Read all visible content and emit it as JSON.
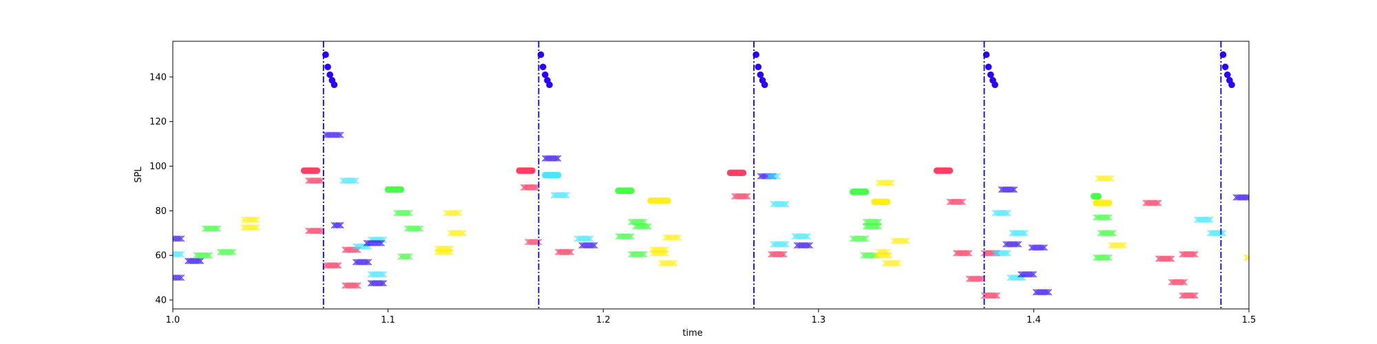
{
  "chart_data": {
    "type": "scatter",
    "title": "",
    "xlabel": "time",
    "ylabel": "SPL",
    "xlim": [
      1.0,
      1.5
    ],
    "ylim": [
      36,
      156
    ],
    "xticks": [
      1.0,
      1.1,
      1.2,
      1.3,
      1.4,
      1.5
    ],
    "xtick_labels": [
      "1.0",
      "1.1",
      "1.2",
      "1.3",
      "1.4",
      "1.5"
    ],
    "yticks": [
      40,
      60,
      80,
      100,
      120,
      140
    ],
    "ytick_labels": [
      "40",
      "60",
      "80",
      "100",
      "120",
      "140"
    ],
    "grid": false,
    "legend": "none",
    "colors": {
      "blue": "#2a00ff",
      "cyan": "#33e6ff",
      "green": "#33ff33",
      "yellow": "#ffee00",
      "red": "#ff2a55",
      "vline": "#0000ff"
    },
    "vlines": {
      "color": "blue",
      "style": "dash-dot",
      "x": [
        1.07,
        1.17,
        1.27,
        1.377,
        1.487
      ]
    },
    "circle_markers": {
      "color": "blue",
      "groups": [
        {
          "x": [
            1.071,
            1.072,
            1.073,
            1.074,
            1.075
          ],
          "y": [
            150,
            144.5,
            141,
            138.5,
            136.5
          ]
        },
        {
          "x": [
            1.171,
            1.172,
            1.173,
            1.174,
            1.175
          ],
          "y": [
            150,
            144.5,
            141,
            138.5,
            136.5
          ]
        },
        {
          "x": [
            1.271,
            1.272,
            1.273,
            1.274,
            1.275
          ],
          "y": [
            150,
            144.5,
            141,
            138.5,
            136.5
          ]
        },
        {
          "x": [
            1.378,
            1.379,
            1.38,
            1.381,
            1.382
          ],
          "y": [
            150,
            144.5,
            141,
            138.5,
            136.5
          ]
        },
        {
          "x": [
            1.488,
            1.489,
            1.49,
            1.491,
            1.492
          ],
          "y": [
            150,
            144.5,
            141,
            138.5,
            136.5
          ]
        }
      ]
    },
    "series": [
      {
        "c": "blue",
        "m": "x",
        "x0": 1.0,
        "x1": 1.004,
        "y": 67.5
      },
      {
        "c": "cyan",
        "m": "x",
        "x0": 1.0,
        "x1": 1.004,
        "y": 60.5
      },
      {
        "c": "blue",
        "m": "x",
        "x0": 1.0,
        "x1": 1.004,
        "y": 50
      },
      {
        "c": "blue",
        "m": "x",
        "x0": 1.007,
        "x1": 1.013,
        "y": 57.5
      },
      {
        "c": "green",
        "m": "x",
        "x0": 1.011,
        "x1": 1.017,
        "y": 60
      },
      {
        "c": "green",
        "m": "x",
        "x0": 1.015,
        "x1": 1.021,
        "y": 72
      },
      {
        "c": "green",
        "m": "x",
        "x0": 1.022,
        "x1": 1.028,
        "y": 61.5
      },
      {
        "c": "yellow",
        "m": "x",
        "x0": 1.033,
        "x1": 1.039,
        "y": 76
      },
      {
        "c": "yellow",
        "m": "x",
        "x0": 1.033,
        "x1": 1.039,
        "y": 72.5
      },
      {
        "c": "red",
        "m": "o",
        "x0": 1.061,
        "x1": 1.067,
        "y": 98
      },
      {
        "c": "red",
        "m": "x",
        "x0": 1.063,
        "x1": 1.069,
        "y": 93.5
      },
      {
        "c": "red",
        "m": "x",
        "x0": 1.063,
        "x1": 1.069,
        "y": 71
      },
      {
        "c": "blue",
        "m": "x",
        "x0": 1.071,
        "x1": 1.078,
        "y": 114
      },
      {
        "c": "blue",
        "m": "x",
        "x0": 1.075,
        "x1": 1.078,
        "y": 73.5
      },
      {
        "c": "red",
        "m": "x",
        "x0": 1.071,
        "x1": 1.077,
        "y": 55.5
      },
      {
        "c": "cyan",
        "m": "x",
        "x0": 1.079,
        "x1": 1.085,
        "y": 93.5
      },
      {
        "c": "red",
        "m": "x",
        "x0": 1.08,
        "x1": 1.086,
        "y": 62.5
      },
      {
        "c": "red",
        "m": "x",
        "x0": 1.08,
        "x1": 1.086,
        "y": 46.5
      },
      {
        "c": "cyan",
        "m": "x",
        "x0": 1.085,
        "x1": 1.091,
        "y": 64
      },
      {
        "c": "blue",
        "m": "x",
        "x0": 1.085,
        "x1": 1.091,
        "y": 57
      },
      {
        "c": "cyan",
        "m": "x",
        "x0": 1.092,
        "x1": 1.098,
        "y": 67
      },
      {
        "c": "blue",
        "m": "x",
        "x0": 1.09,
        "x1": 1.097,
        "y": 65.5
      },
      {
        "c": "cyan",
        "m": "x",
        "x0": 1.092,
        "x1": 1.098,
        "y": 51.5
      },
      {
        "c": "blue",
        "m": "x",
        "x0": 1.092,
        "x1": 1.098,
        "y": 47.5
      },
      {
        "c": "green",
        "m": "o",
        "x0": 1.1,
        "x1": 1.106,
        "y": 89.5
      },
      {
        "c": "green",
        "m": "x",
        "x0": 1.104,
        "x1": 1.11,
        "y": 79
      },
      {
        "c": "green",
        "m": "x",
        "x0": 1.106,
        "x1": 1.11,
        "y": 59.5
      },
      {
        "c": "green",
        "m": "x",
        "x0": 1.109,
        "x1": 1.115,
        "y": 72
      },
      {
        "c": "yellow",
        "m": "x",
        "x0": 1.123,
        "x1": 1.129,
        "y": 63
      },
      {
        "c": "yellow",
        "m": "x",
        "x0": 1.123,
        "x1": 1.129,
        "y": 61.5
      },
      {
        "c": "yellow",
        "m": "x",
        "x0": 1.127,
        "x1": 1.133,
        "y": 79
      },
      {
        "c": "yellow",
        "m": "x",
        "x0": 1.129,
        "x1": 1.135,
        "y": 70
      },
      {
        "c": "red",
        "m": "o",
        "x0": 1.161,
        "x1": 1.167,
        "y": 98
      },
      {
        "c": "red",
        "m": "x",
        "x0": 1.163,
        "x1": 1.169,
        "y": 90.5
      },
      {
        "c": "red",
        "m": "x",
        "x0": 1.165,
        "x1": 1.17,
        "y": 66
      },
      {
        "c": "blue",
        "m": "x",
        "x0": 1.173,
        "x1": 1.179,
        "y": 103.5
      },
      {
        "c": "cyan",
        "m": "o",
        "x0": 1.173,
        "x1": 1.179,
        "y": 96
      },
      {
        "c": "cyan",
        "m": "x",
        "x0": 1.177,
        "x1": 1.183,
        "y": 87
      },
      {
        "c": "red",
        "m": "x",
        "x0": 1.179,
        "x1": 1.185,
        "y": 61.5
      },
      {
        "c": "cyan",
        "m": "x",
        "x0": 1.188,
        "x1": 1.194,
        "y": 67.5
      },
      {
        "c": "blue",
        "m": "x",
        "x0": 1.19,
        "x1": 1.196,
        "y": 64.5
      },
      {
        "c": "green",
        "m": "o",
        "x0": 1.207,
        "x1": 1.213,
        "y": 89
      },
      {
        "c": "green",
        "m": "x",
        "x0": 1.207,
        "x1": 1.213,
        "y": 68.5
      },
      {
        "c": "green",
        "m": "x",
        "x0": 1.213,
        "x1": 1.219,
        "y": 75
      },
      {
        "c": "green",
        "m": "x",
        "x0": 1.215,
        "x1": 1.221,
        "y": 73
      },
      {
        "c": "green",
        "m": "x",
        "x0": 1.213,
        "x1": 1.219,
        "y": 60.5
      },
      {
        "c": "yellow",
        "m": "o",
        "x0": 1.222,
        "x1": 1.23,
        "y": 84.5
      },
      {
        "c": "yellow",
        "m": "x",
        "x0": 1.223,
        "x1": 1.229,
        "y": 62.5
      },
      {
        "c": "yellow",
        "m": "x",
        "x0": 1.223,
        "x1": 1.229,
        "y": 61
      },
      {
        "c": "yellow",
        "m": "x",
        "x0": 1.229,
        "x1": 1.235,
        "y": 68
      },
      {
        "c": "yellow",
        "m": "x",
        "x0": 1.227,
        "x1": 1.233,
        "y": 56.5
      },
      {
        "c": "red",
        "m": "o",
        "x0": 1.259,
        "x1": 1.265,
        "y": 97
      },
      {
        "c": "red",
        "m": "x",
        "x0": 1.261,
        "x1": 1.267,
        "y": 86.5
      },
      {
        "c": "blue",
        "m": "x",
        "x0": 1.273,
        "x1": 1.279,
        "y": 95.5
      },
      {
        "c": "cyan",
        "m": "x",
        "x0": 1.277,
        "x1": 1.281,
        "y": 95.5
      },
      {
        "c": "cyan",
        "m": "x",
        "x0": 1.279,
        "x1": 1.285,
        "y": 83
      },
      {
        "c": "cyan",
        "m": "x",
        "x0": 1.279,
        "x1": 1.285,
        "y": 65
      },
      {
        "c": "red",
        "m": "x",
        "x0": 1.278,
        "x1": 1.284,
        "y": 60.5
      },
      {
        "c": "cyan",
        "m": "x",
        "x0": 1.289,
        "x1": 1.295,
        "y": 68.5
      },
      {
        "c": "blue",
        "m": "x",
        "x0": 1.29,
        "x1": 1.296,
        "y": 64.5
      },
      {
        "c": "green",
        "m": "o",
        "x0": 1.316,
        "x1": 1.322,
        "y": 88.5
      },
      {
        "c": "green",
        "m": "x",
        "x0": 1.316,
        "x1": 1.322,
        "y": 67.5
      },
      {
        "c": "green",
        "m": "x",
        "x0": 1.322,
        "x1": 1.328,
        "y": 75
      },
      {
        "c": "green",
        "m": "x",
        "x0": 1.322,
        "x1": 1.328,
        "y": 73
      },
      {
        "c": "green",
        "m": "x",
        "x0": 1.321,
        "x1": 1.327,
        "y": 60
      },
      {
        "c": "yellow",
        "m": "x",
        "x0": 1.328,
        "x1": 1.334,
        "y": 92.5
      },
      {
        "c": "yellow",
        "m": "o",
        "x0": 1.326,
        "x1": 1.332,
        "y": 84
      },
      {
        "c": "yellow",
        "m": "x",
        "x0": 1.328,
        "x1": 1.332,
        "y": 61.5
      },
      {
        "c": "yellow",
        "m": "x",
        "x0": 1.327,
        "x1": 1.333,
        "y": 60
      },
      {
        "c": "yellow",
        "m": "x",
        "x0": 1.335,
        "x1": 1.341,
        "y": 66.5
      },
      {
        "c": "yellow",
        "m": "x",
        "x0": 1.331,
        "x1": 1.337,
        "y": 56.5
      },
      {
        "c": "red",
        "m": "o",
        "x0": 1.355,
        "x1": 1.361,
        "y": 98
      },
      {
        "c": "red",
        "m": "x",
        "x0": 1.361,
        "x1": 1.367,
        "y": 84
      },
      {
        "c": "red",
        "m": "x",
        "x0": 1.364,
        "x1": 1.37,
        "y": 61
      },
      {
        "c": "red",
        "m": "x",
        "x0": 1.37,
        "x1": 1.376,
        "y": 49.5
      },
      {
        "c": "red",
        "m": "x",
        "x0": 1.377,
        "x1": 1.383,
        "y": 61
      },
      {
        "c": "red",
        "m": "x",
        "x0": 1.377,
        "x1": 1.383,
        "y": 42
      },
      {
        "c": "blue",
        "m": "x",
        "x0": 1.385,
        "x1": 1.391,
        "y": 89.5
      },
      {
        "c": "cyan",
        "m": "x",
        "x0": 1.382,
        "x1": 1.388,
        "y": 79
      },
      {
        "c": "cyan",
        "m": "x",
        "x0": 1.382,
        "x1": 1.388,
        "y": 61
      },
      {
        "c": "blue",
        "m": "x",
        "x0": 1.387,
        "x1": 1.393,
        "y": 65
      },
      {
        "c": "cyan",
        "m": "x",
        "x0": 1.39,
        "x1": 1.396,
        "y": 70
      },
      {
        "c": "cyan",
        "m": "x",
        "x0": 1.389,
        "x1": 1.395,
        "y": 50
      },
      {
        "c": "blue",
        "m": "x",
        "x0": 1.394,
        "x1": 1.4,
        "y": 51.5
      },
      {
        "c": "blue",
        "m": "x",
        "x0": 1.399,
        "x1": 1.405,
        "y": 63.5
      },
      {
        "c": "blue",
        "m": "x",
        "x0": 1.401,
        "x1": 1.407,
        "y": 43.5
      },
      {
        "c": "green",
        "m": "o",
        "x0": 1.428,
        "x1": 1.43,
        "y": 86.5
      },
      {
        "c": "yellow",
        "m": "x",
        "x0": 1.43,
        "x1": 1.436,
        "y": 94.5
      },
      {
        "c": "yellow",
        "m": "o",
        "x0": 1.429,
        "x1": 1.435,
        "y": 83.5
      },
      {
        "c": "green",
        "m": "x",
        "x0": 1.429,
        "x1": 1.435,
        "y": 77
      },
      {
        "c": "green",
        "m": "x",
        "x0": 1.431,
        "x1": 1.437,
        "y": 70
      },
      {
        "c": "green",
        "m": "x",
        "x0": 1.429,
        "x1": 1.435,
        "y": 59
      },
      {
        "c": "yellow",
        "m": "x",
        "x0": 1.436,
        "x1": 1.442,
        "y": 64.5
      },
      {
        "c": "red",
        "m": "x",
        "x0": 1.452,
        "x1": 1.458,
        "y": 83.5
      },
      {
        "c": "red",
        "m": "x",
        "x0": 1.458,
        "x1": 1.464,
        "y": 58.5
      },
      {
        "c": "red",
        "m": "x",
        "x0": 1.464,
        "x1": 1.47,
        "y": 48
      },
      {
        "c": "red",
        "m": "x",
        "x0": 1.469,
        "x1": 1.475,
        "y": 60.5
      },
      {
        "c": "red",
        "m": "x",
        "x0": 1.469,
        "x1": 1.475,
        "y": 42
      },
      {
        "c": "cyan",
        "m": "x",
        "x0": 1.476,
        "x1": 1.482,
        "y": 76
      },
      {
        "c": "cyan",
        "m": "x",
        "x0": 1.482,
        "x1": 1.488,
        "y": 70
      },
      {
        "c": "blue",
        "m": "x",
        "x0": 1.494,
        "x1": 1.5,
        "y": 86
      },
      {
        "c": "yellow",
        "m": "x",
        "x0": 1.499,
        "x1": 1.5,
        "y": 59
      }
    ]
  }
}
